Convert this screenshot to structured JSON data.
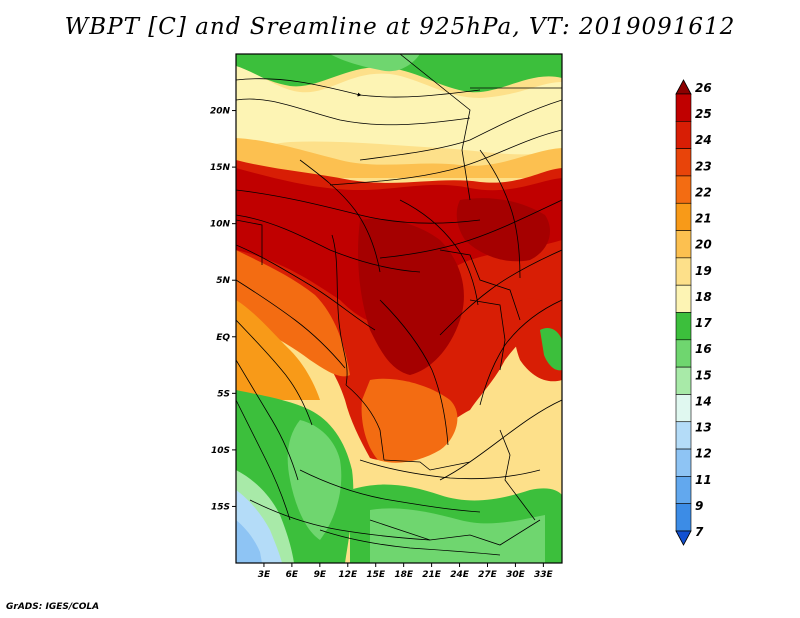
{
  "title": "WBPT [C] and Sreamline at 925hPa, VT: 2019091612",
  "footer": "GrADS: IGES/COLA",
  "map": {
    "lon_range": [
      0,
      35
    ],
    "lat_range": [
      -20,
      25
    ],
    "lon_ticks": [
      {
        "value": 3,
        "label": "3E"
      },
      {
        "value": 6,
        "label": "6E"
      },
      {
        "value": 9,
        "label": "9E"
      },
      {
        "value": 12,
        "label": "12E"
      },
      {
        "value": 15,
        "label": "15E"
      },
      {
        "value": 18,
        "label": "18E"
      },
      {
        "value": 21,
        "label": "21E"
      },
      {
        "value": 24,
        "label": "24E"
      },
      {
        "value": 27,
        "label": "27E"
      },
      {
        "value": 30,
        "label": "30E"
      },
      {
        "value": 33,
        "label": "33E"
      }
    ],
    "lat_ticks": [
      {
        "value": 20,
        "label": "20N"
      },
      {
        "value": 15,
        "label": "15N"
      },
      {
        "value": 10,
        "label": "10N"
      },
      {
        "value": 5,
        "label": "5N"
      },
      {
        "value": 0,
        "label": "EQ"
      },
      {
        "value": -5,
        "label": "5S"
      },
      {
        "value": -10,
        "label": "10S"
      },
      {
        "value": -15,
        "label": "15S"
      }
    ]
  },
  "colorbar": {
    "levels": [
      {
        "label": "26",
        "color": "#a50000"
      },
      {
        "label": "25",
        "color": "#c00000"
      },
      {
        "label": "24",
        "color": "#d81e05"
      },
      {
        "label": "23",
        "color": "#e8440a"
      },
      {
        "label": "22",
        "color": "#f36c12"
      },
      {
        "label": "21",
        "color": "#f89a18"
      },
      {
        "label": "20",
        "color": "#fcc050"
      },
      {
        "label": "19",
        "color": "#fde08a"
      },
      {
        "label": "18",
        "color": "#fdf4b4"
      },
      {
        "label": "17",
        "color": "#3cbf3c"
      },
      {
        "label": "16",
        "color": "#6fd66f"
      },
      {
        "label": "15",
        "color": "#a8eaa8"
      },
      {
        "label": "14",
        "color": "#e0f8f0"
      },
      {
        "label": "13",
        "color": "#b4dcf8"
      },
      {
        "label": "12",
        "color": "#8ec4f4"
      },
      {
        "label": "11",
        "color": "#62a8ee"
      },
      {
        "label": "9",
        "color": "#3c8ce6"
      },
      {
        "label": "7",
        "color": "#1e6ede"
      }
    ],
    "top_arrow_color": "#8c0000",
    "bottom_arrow_color": "#1250d0"
  }
}
